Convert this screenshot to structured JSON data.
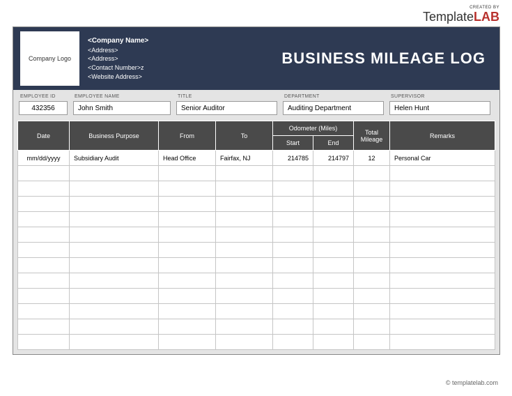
{
  "brand": {
    "created_by": "CREATED BY",
    "name_prefix": "Template",
    "name_suffix": "LAB"
  },
  "header": {
    "logo_placeholder": "Company Logo",
    "company_name": "<Company Name>",
    "address1": "<Address>",
    "address2": "<Address>",
    "contact": "<Contact Number>z",
    "website": "<Website Address>",
    "title": "BUSINESS MILEAGE LOG"
  },
  "employee": {
    "labels": {
      "id": "EMPLOYEE ID",
      "name": "EMPLOYEE NAME",
      "title": "TITLE",
      "department": "DEPARTMENT",
      "supervisor": "SUPERVISOR"
    },
    "id": "432356",
    "name": "John Smith",
    "title": "Senior Auditor",
    "department": "Auditing Department",
    "supervisor": "Helen Hunt"
  },
  "table": {
    "headers": {
      "date": "Date",
      "purpose": "Business Purpose",
      "from": "From",
      "to": "To",
      "odometer": "Odometer (Miles)",
      "start": "Start",
      "end": "End",
      "total": "Total Mileage",
      "remarks": "Remarks"
    },
    "row0": {
      "date": "mm/dd/yyyy",
      "purpose": "Subsidiary Audit",
      "from": "Head Office",
      "to": "Fairfax, NJ",
      "start": "214785",
      "end": "214797",
      "total": "12",
      "remarks": "Personal Car"
    },
    "empty_rows": 12,
    "colors": {
      "header_bar_bg": "#2e3a53",
      "table_header_bg": "#4a4a4a",
      "frame_bg": "#e4e4e4",
      "cell_bg": "#ffffff",
      "border": "#c5c5c5"
    }
  },
  "footer": {
    "credit": "© templatelab.com"
  }
}
